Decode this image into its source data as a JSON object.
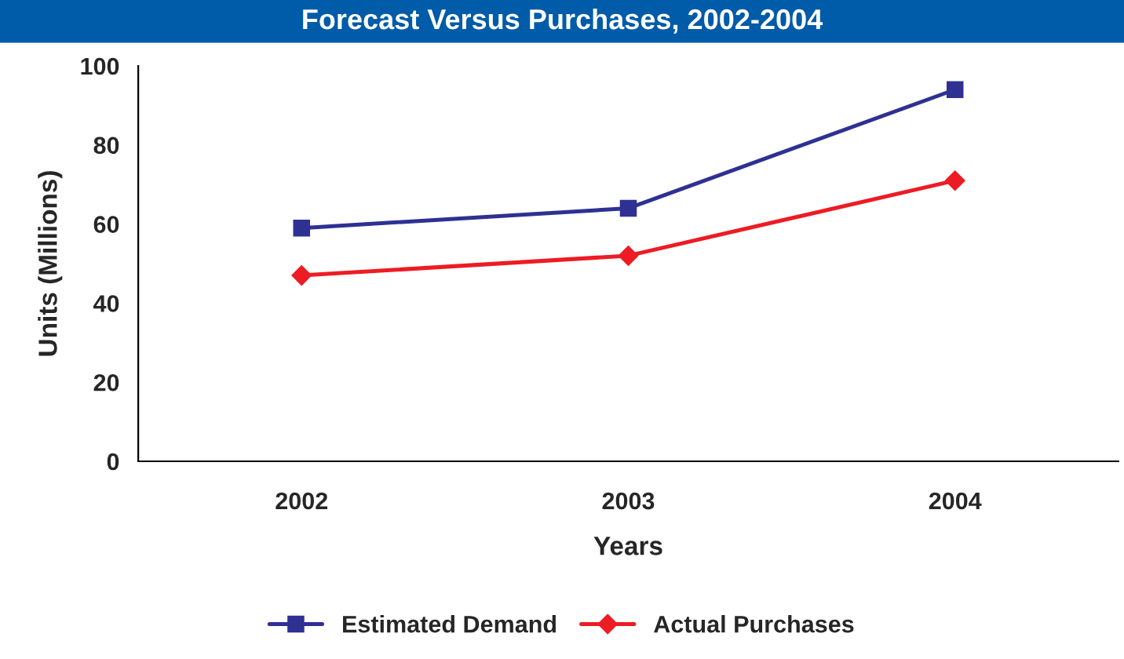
{
  "chart_data": {
    "type": "line",
    "title": "Forecast Versus Purchases, 2002-2004",
    "xlabel": "Years",
    "ylabel": "Units (Millions)",
    "categories": [
      "2002",
      "2003",
      "2004"
    ],
    "series": [
      {
        "name": "Estimated Demand",
        "color": "#2e3192",
        "values": [
          59,
          64,
          94
        ],
        "marker": "square"
      },
      {
        "name": "Actual Purchases",
        "color": "#ed1c24",
        "values": [
          47,
          52,
          71
        ],
        "marker": "diamond"
      }
    ],
    "ylim": [
      0,
      100
    ],
    "yticks": [
      0,
      20,
      40,
      60,
      80,
      100
    ],
    "grid": false,
    "legend": "bottom",
    "line_style": "solid"
  }
}
